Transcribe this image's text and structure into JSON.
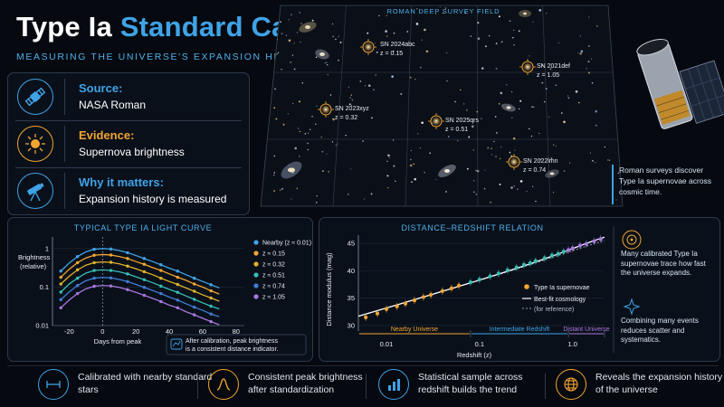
{
  "header": {
    "title_a": "Type Ia",
    "title_b": "Standard Candles",
    "subtitle": "MEASURING THE UNIVERSE'S EXPANSION HISTORY"
  },
  "info_cards": [
    {
      "label": "Source:",
      "value": "NASA Roman",
      "icon": "satellite-icon",
      "color": "#3fa3e6"
    },
    {
      "label": "Evidence:",
      "value": "Supernova brightness",
      "icon": "sun-icon",
      "color": "#f2a531"
    },
    {
      "label": "Why it matters:",
      "value": "Expansion history is measured",
      "icon": "telescope-icon",
      "color": "#3fa3e6"
    }
  ],
  "survey": {
    "title": "ROMAN DEEP SURVEY FIELD",
    "supernovae": [
      {
        "name": "SN 2024abc",
        "z": "z = 0.15"
      },
      {
        "name": "SN 2021def",
        "z": "z = 1.05"
      },
      {
        "name": "SN 2023xyz",
        "z": "z = 0.32"
      },
      {
        "name": "SN 2025qrs",
        "z": "z = 0.51"
      },
      {
        "name": "SN 2022lmn",
        "z": "z = 0.74"
      }
    ],
    "caption": "Roman surveys discover Type Ia supernovae across cosmic time."
  },
  "light_curve": {
    "title": "TYPICAL TYPE IA LIGHT CURVE",
    "ylabel": "Brightness (relative)",
    "ylabel_1": "Brightness",
    "ylabel_2": "(relative)",
    "xlabel": "Days from peak",
    "y_ticks": [
      "1",
      "0.1",
      "0.01"
    ],
    "x_ticks": [
      "-20",
      "0",
      "20",
      "40",
      "60",
      "80"
    ],
    "legend": [
      "Nearby (z ≈ 0.01)",
      "z ≈ 0.15",
      "z ≈ 0.32",
      "z ≈ 0.51",
      "z ≈ 0.74",
      "z ≈ 1.05"
    ],
    "note_1": "After calibration, peak brightness",
    "note_2": "is a consistent distance indicator.",
    "colors": [
      "#3fa3e6",
      "#f2a531",
      "#e0b12a",
      "#35c0b5",
      "#3f7fd6",
      "#a878e0"
    ]
  },
  "hubble": {
    "title": "DISTANCE–REDSHIFT RELATION",
    "ylabel": "Distance modulus (mag)",
    "xlabel": "Redshift (z)",
    "y_ticks": [
      "45",
      "40",
      "35",
      "30"
    ],
    "x_ticks": [
      "0.01",
      "0.1",
      "1.0"
    ],
    "legend": [
      "Type Ia supernovae",
      "Best-fit cosmology",
      "(for reference)"
    ],
    "regions": [
      "Nearby Universe",
      "Intermediate Redshift",
      "Distant Universe"
    ],
    "side_note_1": "Many calibrated Type Ia supernovae trace how fast the universe expands.",
    "side_note_2": "Combining many events reduces scatter and systematics."
  },
  "bottom_bar": [
    {
      "text": "Calibrated with nearby standard stars",
      "icon": "ruler-icon",
      "color": "#3fa3e6"
    },
    {
      "text": "Consistent peak brightness after standardization",
      "icon": "peak-curve-icon",
      "color": "#f2a531"
    },
    {
      "text": "Statistical sample across redshift builds the trend",
      "icon": "bar-chart-icon",
      "color": "#3fa3e6"
    },
    {
      "text": "Reveals the expansion history of the universe",
      "icon": "globe-icon",
      "color": "#f2a531"
    }
  ],
  "chart_data": [
    {
      "type": "line",
      "title": "TYPICAL TYPE IA LIGHT CURVE",
      "xlabel": "Days from peak",
      "ylabel": "Brightness (relative)",
      "yscale": "log",
      "xlim": [
        -30,
        85
      ],
      "ylim": [
        0.01,
        2
      ],
      "x": [
        -25,
        -20,
        -15,
        -10,
        -5,
        0,
        5,
        10,
        15,
        20,
        25,
        30,
        35,
        40,
        45,
        50,
        55,
        60,
        65,
        70
      ],
      "series": [
        {
          "name": "Nearby (z ≈ 0.01)",
          "values": [
            0.26,
            0.42,
            0.62,
            0.82,
            0.96,
            1.0,
            0.97,
            0.89,
            0.78,
            0.66,
            0.55,
            0.46,
            0.38,
            0.31,
            0.26,
            0.21,
            0.17,
            0.14,
            0.115,
            0.095
          ]
        },
        {
          "name": "z ≈ 0.15",
          "values": [
            0.18,
            0.29,
            0.43,
            0.57,
            0.67,
            0.7,
            0.68,
            0.62,
            0.55,
            0.46,
            0.39,
            0.32,
            0.27,
            0.22,
            0.18,
            0.15,
            0.12,
            0.1,
            0.08,
            0.066
          ]
        },
        {
          "name": "z ≈ 0.32",
          "values": [
            0.12,
            0.19,
            0.28,
            0.37,
            0.43,
            0.45,
            0.44,
            0.4,
            0.35,
            0.3,
            0.25,
            0.21,
            0.17,
            0.14,
            0.117,
            0.095,
            0.078,
            0.063,
            0.052,
            0.043
          ]
        },
        {
          "name": "z ≈ 0.51",
          "values": [
            0.074,
            0.12,
            0.17,
            0.23,
            0.27,
            0.28,
            0.27,
            0.25,
            0.22,
            0.185,
            0.155,
            0.13,
            0.106,
            0.087,
            0.073,
            0.059,
            0.048,
            0.039,
            0.032,
            0.027
          ]
        },
        {
          "name": "z ≈ 0.74",
          "values": [
            0.047,
            0.075,
            0.11,
            0.146,
            0.17,
            0.178,
            0.173,
            0.158,
            0.139,
            0.117,
            0.098,
            0.082,
            0.068,
            0.055,
            0.046,
            0.037,
            0.03,
            0.025,
            0.02,
            0.017
          ]
        },
        {
          "name": "z ≈ 1.05",
          "values": [
            0.029,
            0.046,
            0.068,
            0.09,
            0.105,
            0.11,
            0.107,
            0.098,
            0.086,
            0.073,
            0.061,
            0.051,
            0.042,
            0.034,
            0.029,
            0.023,
            0.019,
            0.0155,
            0.0127,
            0.0105
          ]
        }
      ]
    },
    {
      "type": "scatter",
      "title": "DISTANCE–REDSHIFT RELATION",
      "xlabel": "Redshift (z)",
      "ylabel": "Distance modulus (mag)",
      "xscale": "log",
      "xlim": [
        0.005,
        2.2
      ],
      "ylim": [
        29,
        46.5
      ],
      "series": [
        {
          "name": "Type Ia supernovae",
          "x": [
            0.006,
            0.008,
            0.01,
            0.013,
            0.016,
            0.02,
            0.025,
            0.03,
            0.04,
            0.05,
            0.06,
            0.08,
            0.1,
            0.13,
            0.16,
            0.2,
            0.25,
            0.3,
            0.35,
            0.4,
            0.5,
            0.6,
            0.7,
            0.8,
            0.9,
            1.0,
            1.2,
            1.4,
            1.7,
            2.0
          ],
          "values": [
            31.5,
            32.2,
            33.0,
            33.5,
            34.0,
            34.6,
            35.2,
            35.6,
            36.3,
            36.8,
            37.3,
            37.9,
            38.4,
            39.0,
            39.5,
            40.1,
            40.6,
            41.1,
            41.4,
            41.8,
            42.3,
            42.8,
            43.1,
            43.5,
            43.8,
            44.1,
            44.6,
            44.9,
            45.4,
            45.8
          ]
        },
        {
          "name": "Best-fit cosmology"
        },
        {
          "name": "(for reference)"
        }
      ]
    }
  ]
}
